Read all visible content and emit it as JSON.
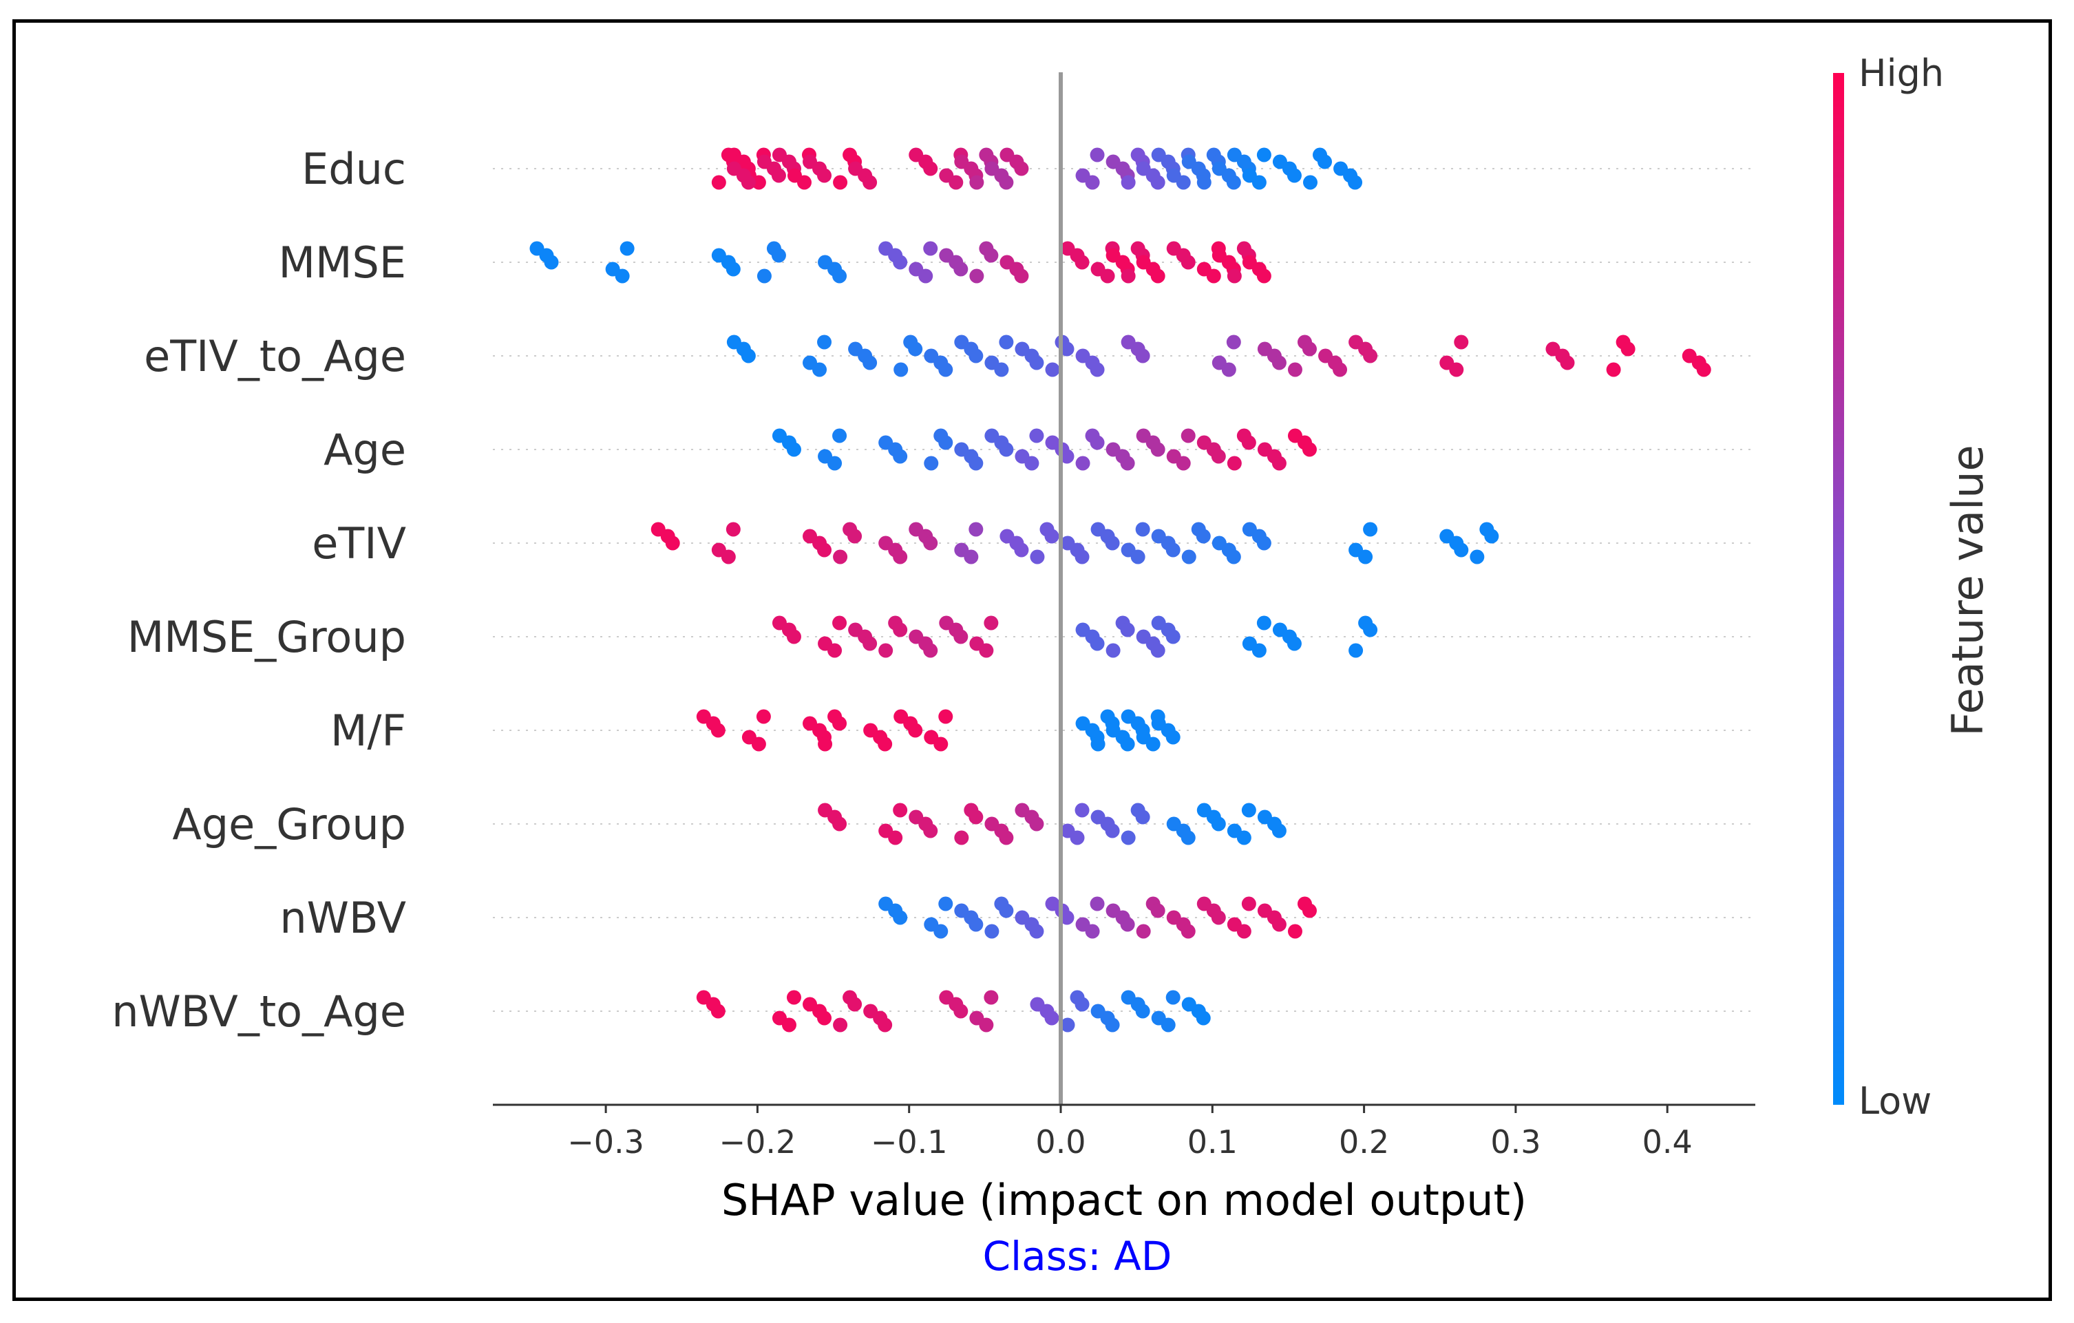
{
  "chart_data": {
    "type": "scatter",
    "subtype": "shap-beeswarm",
    "xlabel": "SHAP value (impact on model output)",
    "subtitle": "Class: AD",
    "xlim": [
      -0.37,
      0.46
    ],
    "xticks": [
      -0.3,
      -0.2,
      -0.1,
      0.0,
      0.1,
      0.2,
      0.3,
      0.4
    ],
    "xtick_labels": [
      "−0.3",
      "−0.2",
      "−0.1",
      "0.0",
      "0.1",
      "0.2",
      "0.3",
      "0.4"
    ],
    "colorbar": {
      "label": "Feature value",
      "high": "High",
      "low": "Low",
      "high_color": "#ff0052",
      "low_color": "#008bfb"
    },
    "features": [
      {
        "name": "Educ",
        "values": [
          -0.21,
          -0.2,
          -0.19,
          -0.22,
          -0.21,
          -0.18,
          -0.17,
          -0.16,
          -0.14,
          -0.13,
          -0.09,
          -0.07,
          -0.06,
          -0.05,
          -0.04,
          -0.03,
          0.02,
          0.04,
          0.05,
          0.06,
          0.07,
          0.08,
          0.09,
          0.1,
          0.11,
          0.12,
          0.13,
          0.15,
          0.17,
          0.19
        ],
        "feature_value": [
          0.95,
          0.95,
          0.9,
          0.95,
          0.9,
          0.9,
          0.95,
          0.9,
          0.95,
          0.9,
          0.9,
          0.85,
          0.8,
          0.75,
          0.7,
          0.8,
          0.55,
          0.6,
          0.5,
          0.45,
          0.35,
          0.3,
          0.2,
          0.2,
          0.15,
          0.1,
          0.05,
          0.05,
          0.05,
          0.05
        ]
      },
      {
        "name": "MMSE",
        "values": [
          -0.34,
          -0.29,
          -0.22,
          -0.19,
          -0.15,
          -0.11,
          -0.09,
          -0.07,
          -0.05,
          -0.03,
          0.01,
          0.03,
          0.04,
          0.05,
          0.06,
          0.08,
          0.1,
          0.11,
          0.12,
          0.13
        ],
        "feature_value": [
          0.05,
          0.05,
          0.05,
          0.1,
          0.1,
          0.45,
          0.55,
          0.65,
          0.7,
          0.8,
          0.9,
          0.9,
          0.95,
          0.9,
          0.95,
          0.9,
          0.95,
          0.95,
          0.9,
          0.95
        ]
      },
      {
        "name": "eTIV_to_Age",
        "values": [
          -0.21,
          -0.16,
          -0.13,
          -0.1,
          -0.08,
          -0.06,
          -0.04,
          -0.02,
          0.0,
          0.02,
          0.05,
          0.11,
          0.14,
          0.16,
          0.18,
          0.2,
          0.26,
          0.33,
          0.37,
          0.42
        ],
        "feature_value": [
          0.05,
          0.1,
          0.15,
          0.15,
          0.2,
          0.25,
          0.3,
          0.35,
          0.4,
          0.45,
          0.55,
          0.6,
          0.7,
          0.75,
          0.8,
          0.85,
          0.9,
          0.9,
          0.95,
          0.95
        ]
      },
      {
        "name": "Age",
        "values": [
          -0.18,
          -0.15,
          -0.11,
          -0.08,
          -0.06,
          -0.04,
          -0.02,
          0.0,
          0.02,
          0.04,
          0.06,
          0.08,
          0.1,
          0.12,
          0.14,
          0.16
        ],
        "feature_value": [
          0.05,
          0.1,
          0.15,
          0.2,
          0.3,
          0.35,
          0.45,
          0.5,
          0.55,
          0.65,
          0.7,
          0.75,
          0.85,
          0.9,
          0.9,
          0.95
        ]
      },
      {
        "name": "eTIV",
        "values": [
          -0.26,
          -0.22,
          -0.16,
          -0.14,
          -0.11,
          -0.09,
          -0.06,
          -0.03,
          -0.01,
          0.01,
          0.03,
          0.05,
          0.07,
          0.09,
          0.11,
          0.13,
          0.2,
          0.26,
          0.28
        ],
        "feature_value": [
          0.95,
          0.9,
          0.9,
          0.85,
          0.8,
          0.75,
          0.6,
          0.5,
          0.45,
          0.4,
          0.35,
          0.3,
          0.25,
          0.2,
          0.15,
          0.15,
          0.05,
          0.05,
          0.05
        ]
      },
      {
        "name": "MMSE_Group",
        "values": [
          -0.18,
          -0.15,
          -0.13,
          -0.11,
          -0.09,
          -0.07,
          -0.05,
          0.02,
          0.04,
          0.06,
          0.07,
          0.13,
          0.15,
          0.2
        ],
        "feature_value": [
          0.9,
          0.9,
          0.85,
          0.85,
          0.8,
          0.8,
          0.85,
          0.35,
          0.4,
          0.4,
          0.35,
          0.05,
          0.05,
          0.05
        ]
      },
      {
        "name": "M/F",
        "values": [
          -0.23,
          -0.2,
          -0.16,
          -0.15,
          -0.12,
          -0.1,
          -0.08,
          0.02,
          0.03,
          0.04,
          0.05,
          0.06,
          0.07
        ],
        "feature_value": [
          0.95,
          0.95,
          0.95,
          0.95,
          0.95,
          0.95,
          0.95,
          0.05,
          0.05,
          0.05,
          0.05,
          0.05,
          0.05
        ]
      },
      {
        "name": "Age_Group",
        "values": [
          -0.15,
          -0.11,
          -0.09,
          -0.06,
          -0.04,
          -0.02,
          0.01,
          0.03,
          0.05,
          0.08,
          0.1,
          0.12,
          0.14
        ],
        "feature_value": [
          0.9,
          0.9,
          0.85,
          0.85,
          0.8,
          0.75,
          0.45,
          0.4,
          0.35,
          0.1,
          0.05,
          0.05,
          0.05
        ]
      },
      {
        "name": "nWBV",
        "values": [
          -0.11,
          -0.08,
          -0.06,
          -0.04,
          -0.02,
          0.0,
          0.02,
          0.04,
          0.06,
          0.08,
          0.1,
          0.12,
          0.14,
          0.16
        ],
        "feature_value": [
          0.1,
          0.15,
          0.25,
          0.3,
          0.4,
          0.5,
          0.6,
          0.65,
          0.75,
          0.8,
          0.85,
          0.9,
          0.9,
          0.95
        ]
      },
      {
        "name": "nWBV_to_Age",
        "values": [
          -0.23,
          -0.18,
          -0.16,
          -0.14,
          -0.12,
          -0.07,
          -0.05,
          -0.01,
          0.01,
          0.03,
          0.05,
          0.07,
          0.09
        ],
        "feature_value": [
          0.95,
          0.95,
          0.95,
          0.9,
          0.9,
          0.85,
          0.8,
          0.5,
          0.35,
          0.15,
          0.1,
          0.1,
          0.05
        ]
      }
    ]
  }
}
